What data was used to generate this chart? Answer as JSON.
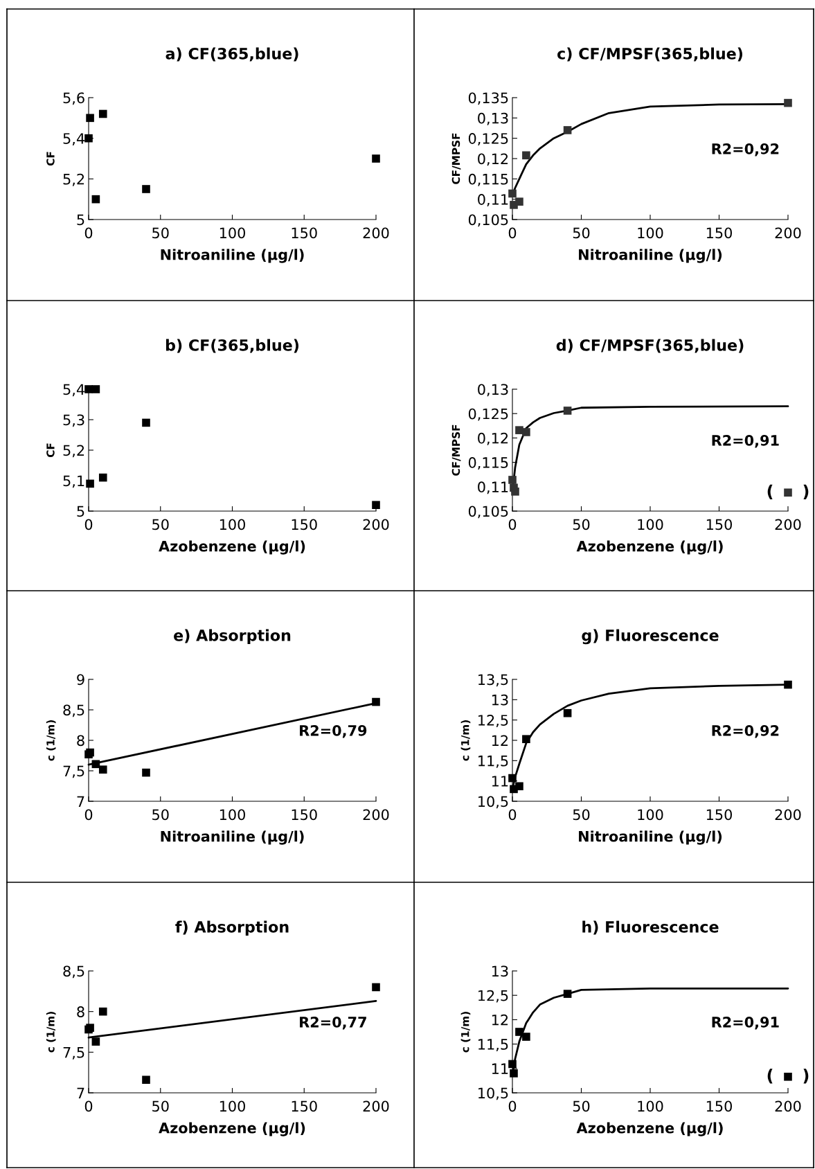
{
  "chart_data": [
    {
      "type": "scatter",
      "title": "a) CF(365,blue)",
      "xlabel": "Nitroaniline (µg/l)",
      "ylabel": "CF",
      "marker": "square",
      "xlim": [
        0,
        200
      ],
      "xticks": [
        0,
        50,
        100,
        150,
        200
      ],
      "ylim": [
        5,
        5.6
      ],
      "yticks": [
        5,
        {
          "value": 5.2,
          "label": "5,2"
        },
        {
          "value": 5.4,
          "label": "5,4"
        },
        {
          "value": 5.6,
          "label": "5,6"
        }
      ],
      "series": [
        {
          "color": "#000000",
          "x": [
            0,
            1,
            10,
            5,
            40,
            200
          ],
          "values": [
            5.4,
            5.5,
            5.52,
            5.1,
            5.15,
            5.3
          ]
        }
      ]
    },
    {
      "type": "scatter",
      "title": "c) CF/MPSF(365,blue)",
      "xlabel": "Nitroaniline (µg/l)",
      "ylabel": "CF/MPSF",
      "marker": "square",
      "xlim": [
        0,
        200
      ],
      "xticks": [
        0,
        50,
        100,
        150,
        200
      ],
      "ylim": [
        0.105,
        0.135
      ],
      "yticks": [
        {
          "value": 0.105,
          "label": "0,105"
        },
        {
          "value": 0.11,
          "label": "0,11"
        },
        {
          "value": 0.115,
          "label": "0,115"
        },
        {
          "value": 0.12,
          "label": "0,12"
        },
        {
          "value": 0.125,
          "label": "0,125"
        },
        {
          "value": 0.13,
          "label": "0,13"
        },
        {
          "value": 0.135,
          "label": "0,135"
        }
      ],
      "annotations": [
        "R2=0,92"
      ],
      "series": [
        {
          "color": "#333333",
          "x": [
            0,
            1,
            5,
            10,
            40,
            200
          ],
          "values": [
            0.1114,
            0.1086,
            0.1094,
            0.1208,
            0.127,
            0.1337
          ]
        },
        {
          "type": "line",
          "marker": "none",
          "color": "#000000",
          "x": [
            0,
            2,
            5,
            10,
            15,
            20,
            30,
            40,
            50,
            70,
            100,
            150,
            200
          ],
          "values": [
            0.111,
            0.1128,
            0.115,
            0.1186,
            0.1208,
            0.1225,
            0.125,
            0.1266,
            0.1285,
            0.1312,
            0.1328,
            0.1333,
            0.1334
          ]
        }
      ]
    },
    {
      "type": "scatter",
      "title": "b) CF(365,blue)",
      "xlabel": "Azobenzene (µg/l)",
      "ylabel": "CF",
      "marker": "square",
      "xlim": [
        0,
        200
      ],
      "xticks": [
        0,
        50,
        100,
        150,
        200
      ],
      "ylim": [
        5,
        5.4
      ],
      "yticks": [
        5,
        {
          "value": 5.1,
          "label": "5,1"
        },
        {
          "value": 5.2,
          "label": "5,2"
        },
        {
          "value": 5.3,
          "label": "5,3"
        },
        {
          "value": 5.4,
          "label": "5,4"
        }
      ],
      "series": [
        {
          "color": "#000000",
          "x": [
            0,
            1,
            5,
            10,
            40,
            200
          ],
          "values": [
            5.4,
            5.09,
            5.4,
            5.11,
            5.29,
            5.02
          ]
        }
      ]
    },
    {
      "type": "scatter",
      "title": "d) CF/MPSF(365,blue)",
      "xlabel": "Azobenzene (µg/l)",
      "ylabel": "CF/MPSF",
      "marker": "square",
      "xlim": [
        0,
        200
      ],
      "xticks": [
        0,
        50,
        100,
        150,
        200
      ],
      "ylim": [
        0.105,
        0.13
      ],
      "yticks": [
        {
          "value": 0.105,
          "label": "0,105"
        },
        {
          "value": 0.11,
          "label": "0,11"
        },
        {
          "value": 0.115,
          "label": "0,115"
        },
        {
          "value": 0.12,
          "label": "0,12"
        },
        {
          "value": 0.125,
          "label": "0,125"
        },
        {
          "value": 0.13,
          "label": "0,13"
        }
      ],
      "annotations": [
        "R2=0,91",
        {
          "text": "(     )",
          "x": 200,
          "y": 0.1088
        }
      ],
      "series": [
        {
          "color": "#333333",
          "x": [
            0,
            1,
            2,
            5,
            10,
            40
          ],
          "values": [
            0.1114,
            0.1098,
            0.109,
            0.1216,
            0.1212,
            0.1256
          ]
        },
        {
          "color": "#333333",
          "x": [
            200
          ],
          "values": [
            0.1088
          ]
        },
        {
          "type": "line",
          "marker": "none",
          "color": "#000000",
          "x": [
            0,
            2,
            5,
            10,
            15,
            20,
            30,
            40,
            50,
            100,
            200
          ],
          "values": [
            0.1088,
            0.114,
            0.1186,
            0.122,
            0.1232,
            0.1241,
            0.1251,
            0.1256,
            0.1262,
            0.1264,
            0.1265
          ]
        }
      ]
    },
    {
      "type": "scatter",
      "title": "e) Absorption",
      "xlabel": "Nitroaniline (µg/l)",
      "ylabel": "c (1/m)",
      "marker": "square",
      "xlim": [
        0,
        200
      ],
      "xticks": [
        0,
        50,
        100,
        150,
        200
      ],
      "ylim": [
        7,
        9
      ],
      "yticks": [
        7,
        {
          "value": 7.5,
          "label": "7,5"
        },
        8,
        {
          "value": 8.5,
          "label": "8,5"
        },
        9
      ],
      "annotations": [
        "R2=0,79"
      ],
      "series": [
        {
          "color": "#000000",
          "x": [
            0,
            1,
            5,
            10,
            40,
            200
          ],
          "values": [
            7.77,
            7.8,
            7.61,
            7.52,
            7.47,
            8.63
          ]
        },
        {
          "type": "line",
          "marker": "none",
          "color": "#000000",
          "x": [
            0,
            200
          ],
          "values": [
            7.6,
            8.61
          ]
        }
      ]
    },
    {
      "type": "scatter",
      "title": "g) Fluorescence",
      "xlabel": "Nitroaniline (µg/l)",
      "ylabel": "c (1/m)",
      "marker": "square",
      "xlim": [
        0,
        200
      ],
      "xticks": [
        0,
        50,
        100,
        150,
        200
      ],
      "ylim": [
        10.5,
        13.5
      ],
      "yticks": [
        {
          "value": 10.5,
          "label": "10,5"
        },
        11,
        {
          "value": 11.5,
          "label": "11,5"
        },
        12,
        {
          "value": 12.5,
          "label": "12,5"
        },
        13,
        {
          "value": 13.5,
          "label": "13,5"
        }
      ],
      "annotations": [
        "R2=0,92"
      ],
      "series": [
        {
          "color": "#000000",
          "x": [
            0,
            1,
            5,
            10,
            40,
            200
          ],
          "values": [
            11.07,
            10.8,
            10.87,
            12.03,
            12.67,
            13.37
          ]
        },
        {
          "type": "line",
          "marker": "none",
          "color": "#000000",
          "x": [
            0,
            2,
            5,
            10,
            15,
            20,
            30,
            40,
            50,
            70,
            100,
            150,
            200
          ],
          "values": [
            10.79,
            11.1,
            11.42,
            11.93,
            12.2,
            12.39,
            12.65,
            12.85,
            12.98,
            13.15,
            13.28,
            13.34,
            13.37
          ]
        }
      ]
    },
    {
      "type": "scatter",
      "title": "f) Absorption",
      "xlabel": "Azobenzene (µg/l)",
      "ylabel": "c (1/m)",
      "marker": "square",
      "xlim": [
        0,
        200
      ],
      "xticks": [
        0,
        50,
        100,
        150,
        200
      ],
      "ylim": [
        7,
        8.5
      ],
      "yticks": [
        7,
        {
          "value": 7.5,
          "label": "7,5"
        },
        8,
        {
          "value": 8.5,
          "label": "8,5"
        }
      ],
      "annotations": [
        "R2=0,77"
      ],
      "series": [
        {
          "color": "#000000",
          "x": [
            0,
            1,
            5,
            10,
            40,
            200
          ],
          "values": [
            7.78,
            7.8,
            7.63,
            8.0,
            7.16,
            8.3
          ]
        },
        {
          "type": "line",
          "marker": "none",
          "color": "#000000",
          "x": [
            0,
            200
          ],
          "values": [
            7.68,
            8.13
          ]
        }
      ]
    },
    {
      "type": "scatter",
      "title": "h) Fluorescence",
      "xlabel": "Azobenzene (µg/l)",
      "ylabel": "c (1/m)",
      "marker": "square",
      "xlim": [
        0,
        200
      ],
      "xticks": [
        0,
        50,
        100,
        150,
        200
      ],
      "ylim": [
        10.5,
        13
      ],
      "yticks": [
        {
          "value": 10.5,
          "label": "10,5"
        },
        11,
        {
          "value": 11.5,
          "label": "11,5"
        },
        12,
        {
          "value": 12.5,
          "label": "12,5"
        },
        13
      ],
      "annotations": [
        "R2=0,91",
        {
          "text": "(     )",
          "x": 200,
          "y": 10.83
        }
      ],
      "series": [
        {
          "color": "#000000",
          "x": [
            0,
            1,
            5,
            10,
            40
          ],
          "values": [
            11.09,
            10.9,
            11.75,
            11.65,
            12.53
          ]
        },
        {
          "color": "#000000",
          "x": [
            200
          ],
          "values": [
            10.83
          ]
        },
        {
          "type": "line",
          "marker": "none",
          "color": "#000000",
          "x": [
            0,
            2,
            5,
            10,
            15,
            20,
            30,
            40,
            50,
            100,
            200
          ],
          "values": [
            10.88,
            11.2,
            11.55,
            11.93,
            12.15,
            12.31,
            12.45,
            12.53,
            12.61,
            12.64,
            12.64
          ]
        }
      ]
    }
  ]
}
